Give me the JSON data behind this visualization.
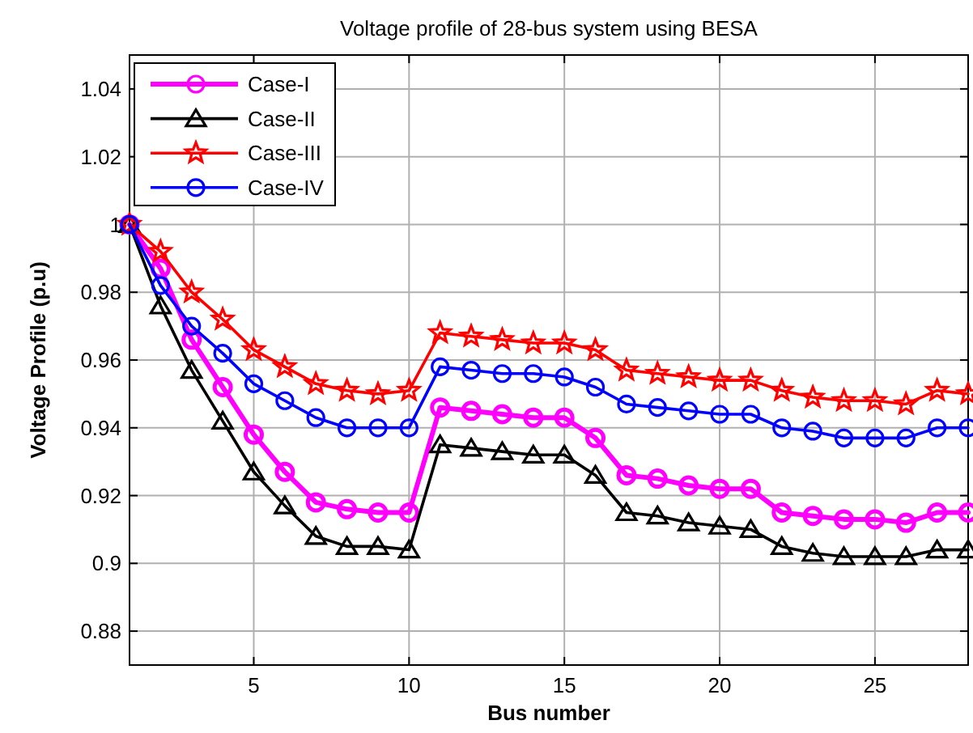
{
  "chart_data": {
    "type": "line",
    "title": "Voltage profile of 28-bus system using BESA",
    "xlabel": "Bus number",
    "ylabel": "Voltage Profile (p.u)",
    "x": [
      1,
      2,
      3,
      4,
      5,
      6,
      7,
      8,
      9,
      10,
      11,
      12,
      13,
      14,
      15,
      16,
      17,
      18,
      19,
      20,
      21,
      22,
      23,
      24,
      25,
      26,
      27,
      28
    ],
    "xlim": [
      1,
      28
    ],
    "xticks": [
      5,
      10,
      15,
      20,
      25
    ],
    "ylim": [
      0.87,
      1.05
    ],
    "yticks": [
      0.88,
      0.9,
      0.92,
      0.94,
      0.96,
      0.98,
      1,
      1.02,
      1.04
    ],
    "grid": true,
    "legend": "top left",
    "series": [
      {
        "name": "Case-I",
        "color": "#ff00ff",
        "marker": "circle",
        "values": [
          1.0,
          0.987,
          0.966,
          0.952,
          0.938,
          0.927,
          0.918,
          0.916,
          0.915,
          0.915,
          0.946,
          0.945,
          0.944,
          0.943,
          0.943,
          0.937,
          0.926,
          0.925,
          0.923,
          0.922,
          0.922,
          0.915,
          0.914,
          0.913,
          0.913,
          0.912,
          0.915,
          0.915
        ]
      },
      {
        "name": "Case-II",
        "color": "#000000",
        "marker": "triangle",
        "values": [
          1.0,
          0.976,
          0.957,
          0.942,
          0.927,
          0.917,
          0.908,
          0.905,
          0.905,
          0.904,
          0.935,
          0.934,
          0.933,
          0.932,
          0.932,
          0.926,
          0.915,
          0.914,
          0.912,
          0.911,
          0.91,
          0.905,
          0.903,
          0.902,
          0.902,
          0.902,
          0.904,
          0.904
        ]
      },
      {
        "name": "Case-III",
        "color": "#ff0000",
        "marker": "star",
        "values": [
          1.0,
          0.992,
          0.98,
          0.972,
          0.963,
          0.958,
          0.953,
          0.951,
          0.95,
          0.951,
          0.968,
          0.967,
          0.966,
          0.965,
          0.965,
          0.963,
          0.957,
          0.956,
          0.955,
          0.954,
          0.954,
          0.951,
          0.949,
          0.948,
          0.948,
          0.947,
          0.951,
          0.95
        ]
      },
      {
        "name": "Case-IV",
        "color": "#0000ff",
        "marker": "circle",
        "values": [
          1.0,
          0.982,
          0.97,
          0.962,
          0.953,
          0.948,
          0.943,
          0.94,
          0.94,
          0.94,
          0.958,
          0.957,
          0.956,
          0.956,
          0.955,
          0.952,
          0.947,
          0.946,
          0.945,
          0.944,
          0.944,
          0.94,
          0.939,
          0.937,
          0.937,
          0.937,
          0.94,
          0.94
        ]
      }
    ]
  }
}
